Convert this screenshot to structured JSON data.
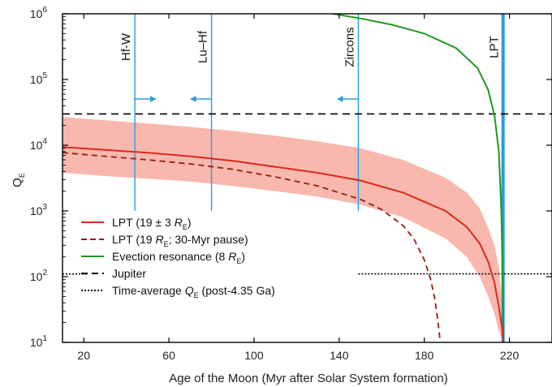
{
  "chart_data": {
    "type": "line",
    "xlabel": "Age of the Moon (Myr after Solar System formation)",
    "ylabel": "Q",
    "ylabel_sub": "E",
    "xlim": [
      10,
      240
    ],
    "ylim": [
      10,
      1000000
    ],
    "yscale": "log",
    "x_ticks": [
      20,
      60,
      100,
      140,
      180,
      220
    ],
    "y_ticks": [
      {
        "value": 10,
        "base": "10",
        "exp": "1"
      },
      {
        "value": 100,
        "base": "10",
        "exp": "2"
      },
      {
        "value": 1000,
        "base": "10",
        "exp": "3"
      },
      {
        "value": 10000,
        "base": "10",
        "exp": "4"
      },
      {
        "value": 100000,
        "base": "10",
        "exp": "5"
      },
      {
        "value": 1000000,
        "base": "10",
        "exp": "6"
      }
    ],
    "colors": {
      "lpt": "#e0261c",
      "band": "#f9b8ad",
      "pause": "#9a1a0c",
      "evection": "#1e9a1e",
      "jupiter": "#000000",
      "constraint": "#2a9be0"
    },
    "series": [
      {
        "name": "LPT (19 ± 3 R_E)",
        "style": "solid",
        "x": [
          10,
          30,
          50,
          70,
          90,
          110,
          130,
          150,
          170,
          190,
          200,
          206,
          210,
          213,
          215,
          216.5,
          217.2
        ],
        "y": [
          9400,
          8500,
          7700,
          6800,
          5800,
          4700,
          3800,
          2900,
          1900,
          1000,
          570,
          320,
          170,
          80,
          35,
          17,
          10
        ]
      },
      {
        "name": "LPT (19 ± 3 R_E) range",
        "style": "band",
        "x": [
          10,
          30,
          50,
          70,
          90,
          110,
          130,
          150,
          170,
          190,
          200,
          206,
          210,
          213,
          215,
          216.5,
          217.2
        ],
        "y_upper": [
          27000,
          24000,
          21500,
          19000,
          16500,
          14000,
          11500,
          9000,
          6000,
          3200,
          1900,
          1100,
          560,
          300,
          140,
          45,
          10
        ],
        "y_lower": [
          3800,
          3400,
          3100,
          2800,
          2400,
          2000,
          1650,
          1250,
          800,
          380,
          200,
          100,
          50,
          27,
          15,
          11,
          10
        ]
      },
      {
        "name": "LPT (19 R_E; 30-Myr pause)",
        "style": "dashed",
        "x": [
          10,
          30,
          50,
          70,
          90,
          110,
          130,
          150,
          160,
          170,
          175,
          180,
          183,
          185,
          186.5,
          187.5
        ],
        "y": [
          7700,
          6800,
          6000,
          5200,
          4300,
          3300,
          2400,
          1500,
          1050,
          600,
          380,
          180,
          90,
          45,
          20,
          10
        ]
      },
      {
        "name": "Evection resonance (8 R_E)",
        "style": "solid",
        "x": [
          137,
          150,
          165,
          180,
          195,
          205,
          210,
          213,
          215,
          216.2,
          216.8,
          217.2
        ],
        "y": [
          1000000,
          850000,
          680000,
          500000,
          300000,
          150000,
          70000,
          28000,
          8000,
          1000,
          100,
          10
        ]
      },
      {
        "name": "Jupiter",
        "style": "dashed",
        "x": [
          10,
          240
        ],
        "y": [
          30000,
          30000
        ]
      },
      {
        "name": "Time-average Q_E (post-4.35 Ga)",
        "style": "dotted",
        "x": [
          149,
          240
        ],
        "y": [
          110,
          110
        ]
      }
    ],
    "vlines": [
      {
        "label": "Hf-W",
        "x": 44,
        "arrow": "right"
      },
      {
        "label": "Lu–Hf",
        "x": 80,
        "arrow": "left"
      },
      {
        "label": "Zircons",
        "x": 149,
        "arrow": "left"
      },
      {
        "label": "LPT",
        "x": 217,
        "arrow": "none"
      }
    ],
    "legend": {
      "placement": "bottom-left",
      "entries": [
        {
          "key": "lpt",
          "text": "LPT (19 ± 3 ",
          "r": "R",
          "sub": "E",
          "tail": ")"
        },
        {
          "key": "pause",
          "text": "LPT (19 ",
          "r": "R",
          "sub": "E",
          "tail": "; 30-Myr pause)"
        },
        {
          "key": "evection",
          "text": "Evection resonance (8 ",
          "r": "R",
          "sub": "E",
          "tail": ")"
        },
        {
          "key": "jupiter",
          "text": "Jupiter",
          "r": "",
          "sub": "",
          "tail": ""
        },
        {
          "key": "timeavg",
          "text": "Time-average ",
          "r": "Q",
          "sub": "E",
          "tail": " (post-4.35 Ga)"
        }
      ]
    }
  }
}
